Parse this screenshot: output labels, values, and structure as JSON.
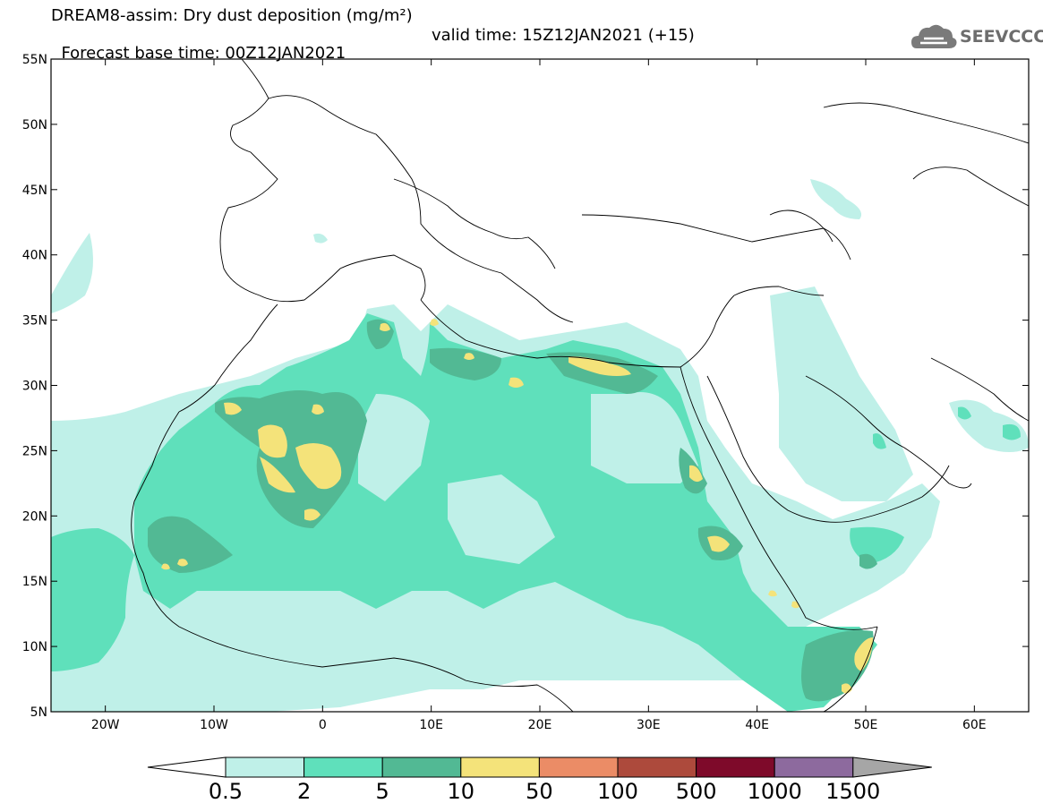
{
  "header": {
    "title_line1": "DREAM8-assim: Dry dust deposition (mg/m²)",
    "title_line2_left": "Forecast base time: 00Z12JAN2021",
    "title_line2_right": "valid time: 15Z12JAN2021 (+15)",
    "logo_text": "SEEVCCC"
  },
  "map": {
    "lat_range": [
      5,
      55
    ],
    "lon_range": [
      -25,
      65
    ],
    "lat_labels": [
      "5N",
      "10N",
      "15N",
      "20N",
      "25N",
      "30N",
      "35N",
      "40N",
      "45N",
      "50N",
      "55N"
    ],
    "lat_values": [
      5,
      10,
      15,
      20,
      25,
      30,
      35,
      40,
      45,
      50,
      55
    ],
    "lon_labels": [
      "20W",
      "10W",
      "0",
      "10E",
      "20E",
      "30E",
      "40E",
      "50E",
      "60E"
    ],
    "lon_values": [
      -20,
      -10,
      0,
      10,
      20,
      30,
      40,
      50,
      60
    ]
  },
  "colorbar": {
    "levels": [
      "0.5",
      "2",
      "5",
      "10",
      "50",
      "100",
      "500",
      "1000",
      "1500"
    ],
    "colors": [
      "#bff0e8",
      "#5fe0bb",
      "#52b994",
      "#f4e37a",
      "#eb8c66",
      "#ad4a3c",
      "#7e0a2a",
      "#8d6a9e",
      "#a6a6a6"
    ],
    "low_arrow_color": "#ffffff",
    "high_arrow_color": "#a6a6a6"
  }
}
